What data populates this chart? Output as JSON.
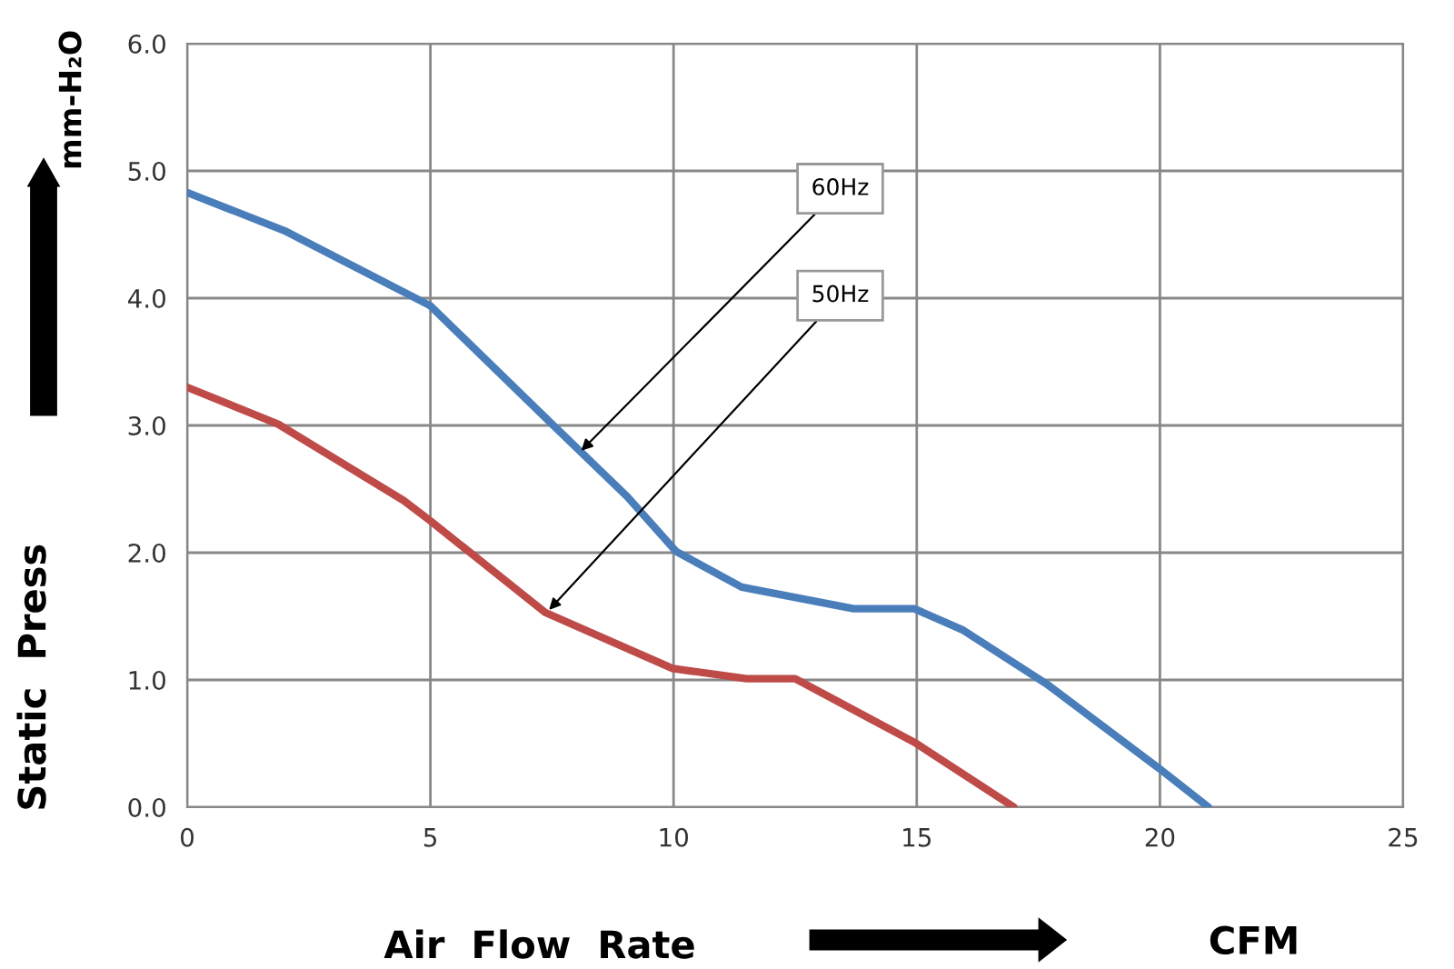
{
  "chart_data": {
    "type": "line",
    "xlabel": "Air  Flow  Rate",
    "ylabel": "Static  Press",
    "xlim": [
      0,
      25
    ],
    "xticks": [
      0,
      5,
      10,
      15,
      20,
      25
    ],
    "ylim": [
      0,
      6
    ],
    "yticks": [
      {
        "value": 0,
        "label": "0.0"
      },
      {
        "value": 1,
        "label": "1.0"
      },
      {
        "value": 2,
        "label": "2.0"
      },
      {
        "value": 3,
        "label": "3.0"
      },
      {
        "value": 4,
        "label": "4.0"
      },
      {
        "value": 5,
        "label": "5.0"
      },
      {
        "value": 6,
        "label": "6.0"
      }
    ],
    "grid": true,
    "legend": false,
    "marker": "none",
    "line_style": "solid",
    "series": [
      {
        "color": "#4a7ebb",
        "x": [
          0,
          2,
          5,
          7.5,
          9.05,
          10.05,
          11.4,
          13.7,
          14.95,
          15.96,
          17.7,
          20,
          21
        ],
        "values": [
          4.83,
          4.53,
          3.94,
          3.01,
          2.44,
          2.01,
          1.73,
          1.56,
          1.56,
          1.39,
          0.96,
          0.3,
          0
        ]
      },
      {
        "color": "#be4b48",
        "x": [
          0,
          1.87,
          4.45,
          5,
          7.36,
          9.98,
          11.5,
          12.5,
          14.95,
          17
        ],
        "values": [
          3.3,
          3.01,
          2.41,
          2.25,
          1.53,
          1.09,
          1.01,
          1.01,
          0.51,
          0
        ]
      }
    ],
    "annotations": [
      {
        "text": "60Hz",
        "x": 8.1,
        "y": 2.8
      },
      {
        "text": "50Hz",
        "x": 7.44,
        "y": 1.55
      },
      "mm-H₂O",
      "CFM"
    ]
  }
}
